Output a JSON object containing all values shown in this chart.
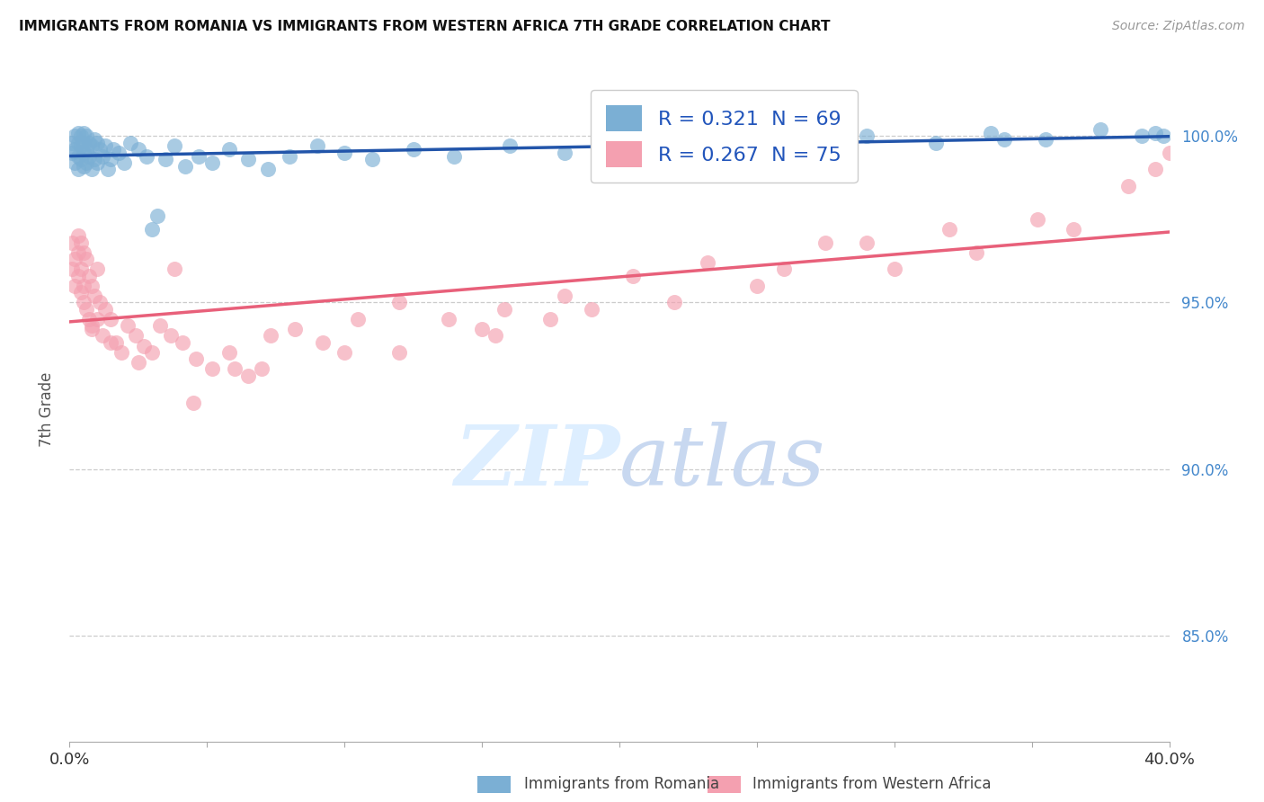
{
  "title": "IMMIGRANTS FROM ROMANIA VS IMMIGRANTS FROM WESTERN AFRICA 7TH GRADE CORRELATION CHART",
  "source": "Source: ZipAtlas.com",
  "ylabel": "7th Grade",
  "y_tick_labels": [
    "100.0%",
    "95.0%",
    "90.0%",
    "85.0%"
  ],
  "y_tick_values": [
    1.0,
    0.95,
    0.9,
    0.85
  ],
  "x_range": [
    0.0,
    0.4
  ],
  "y_range": [
    0.818,
    1.018
  ],
  "legend_romania": "Immigrants from Romania",
  "legend_west_africa": "Immigrants from Western Africa",
  "R_romania": 0.321,
  "N_romania": 69,
  "R_west_africa": 0.267,
  "N_west_africa": 75,
  "blue_color": "#7BAFD4",
  "pink_color": "#F4A0B0",
  "blue_line_color": "#2255AA",
  "pink_line_color": "#E8607A",
  "romania_x": [
    0.001,
    0.001,
    0.002,
    0.002,
    0.002,
    0.003,
    0.003,
    0.003,
    0.003,
    0.004,
    0.004,
    0.004,
    0.005,
    0.005,
    0.005,
    0.005,
    0.006,
    0.006,
    0.006,
    0.007,
    0.007,
    0.008,
    0.008,
    0.009,
    0.009,
    0.01,
    0.01,
    0.011,
    0.012,
    0.013,
    0.014,
    0.015,
    0.016,
    0.018,
    0.02,
    0.022,
    0.025,
    0.028,
    0.03,
    0.032,
    0.035,
    0.038,
    0.042,
    0.047,
    0.052,
    0.058,
    0.065,
    0.072,
    0.08,
    0.09,
    0.1,
    0.11,
    0.125,
    0.14,
    0.16,
    0.18,
    0.2,
    0.22,
    0.24,
    0.265,
    0.29,
    0.315,
    0.335,
    0.355,
    0.375,
    0.39,
    0.395,
    0.398,
    0.34
  ],
  "romania_y": [
    0.995,
    0.998,
    0.992,
    0.996,
    1.0,
    0.99,
    0.994,
    0.998,
    1.001,
    0.993,
    0.997,
    1.0,
    0.991,
    0.995,
    0.998,
    1.001,
    0.992,
    0.996,
    1.0,
    0.994,
    0.998,
    0.99,
    0.997,
    0.993,
    0.999,
    0.992,
    0.998,
    0.996,
    0.994,
    0.997,
    0.99,
    0.993,
    0.996,
    0.995,
    0.992,
    0.998,
    0.996,
    0.994,
    0.972,
    0.976,
    0.993,
    0.997,
    0.991,
    0.994,
    0.992,
    0.996,
    0.993,
    0.99,
    0.994,
    0.997,
    0.995,
    0.993,
    0.996,
    0.994,
    0.997,
    0.995,
    0.998,
    0.996,
    0.999,
    0.997,
    1.0,
    0.998,
    1.001,
    0.999,
    1.002,
    1.0,
    1.001,
    1.0,
    0.999
  ],
  "west_africa_x": [
    0.001,
    0.001,
    0.002,
    0.002,
    0.003,
    0.003,
    0.003,
    0.004,
    0.004,
    0.004,
    0.005,
    0.005,
    0.005,
    0.006,
    0.006,
    0.007,
    0.007,
    0.008,
    0.008,
    0.009,
    0.01,
    0.01,
    0.011,
    0.012,
    0.013,
    0.015,
    0.017,
    0.019,
    0.021,
    0.024,
    0.027,
    0.03,
    0.033,
    0.037,
    0.041,
    0.046,
    0.052,
    0.058,
    0.065,
    0.073,
    0.082,
    0.092,
    0.105,
    0.12,
    0.138,
    0.158,
    0.18,
    0.205,
    0.232,
    0.26,
    0.29,
    0.32,
    0.352,
    0.385,
    0.395,
    0.4,
    0.038,
    0.155,
    0.275,
    0.19,
    0.12,
    0.07,
    0.045,
    0.025,
    0.015,
    0.008,
    0.06,
    0.1,
    0.15,
    0.22,
    0.3,
    0.365,
    0.33,
    0.25,
    0.175
  ],
  "west_africa_y": [
    0.968,
    0.96,
    0.963,
    0.955,
    0.97,
    0.965,
    0.958,
    0.96,
    0.953,
    0.968,
    0.965,
    0.955,
    0.95,
    0.963,
    0.948,
    0.958,
    0.945,
    0.955,
    0.942,
    0.952,
    0.96,
    0.945,
    0.95,
    0.94,
    0.948,
    0.945,
    0.938,
    0.935,
    0.943,
    0.94,
    0.937,
    0.935,
    0.943,
    0.94,
    0.938,
    0.933,
    0.93,
    0.935,
    0.928,
    0.94,
    0.942,
    0.938,
    0.945,
    0.95,
    0.945,
    0.948,
    0.952,
    0.958,
    0.962,
    0.96,
    0.968,
    0.972,
    0.975,
    0.985,
    0.99,
    0.995,
    0.96,
    0.94,
    0.968,
    0.948,
    0.935,
    0.93,
    0.92,
    0.932,
    0.938,
    0.943,
    0.93,
    0.935,
    0.942,
    0.95,
    0.96,
    0.972,
    0.965,
    0.955,
    0.945
  ]
}
